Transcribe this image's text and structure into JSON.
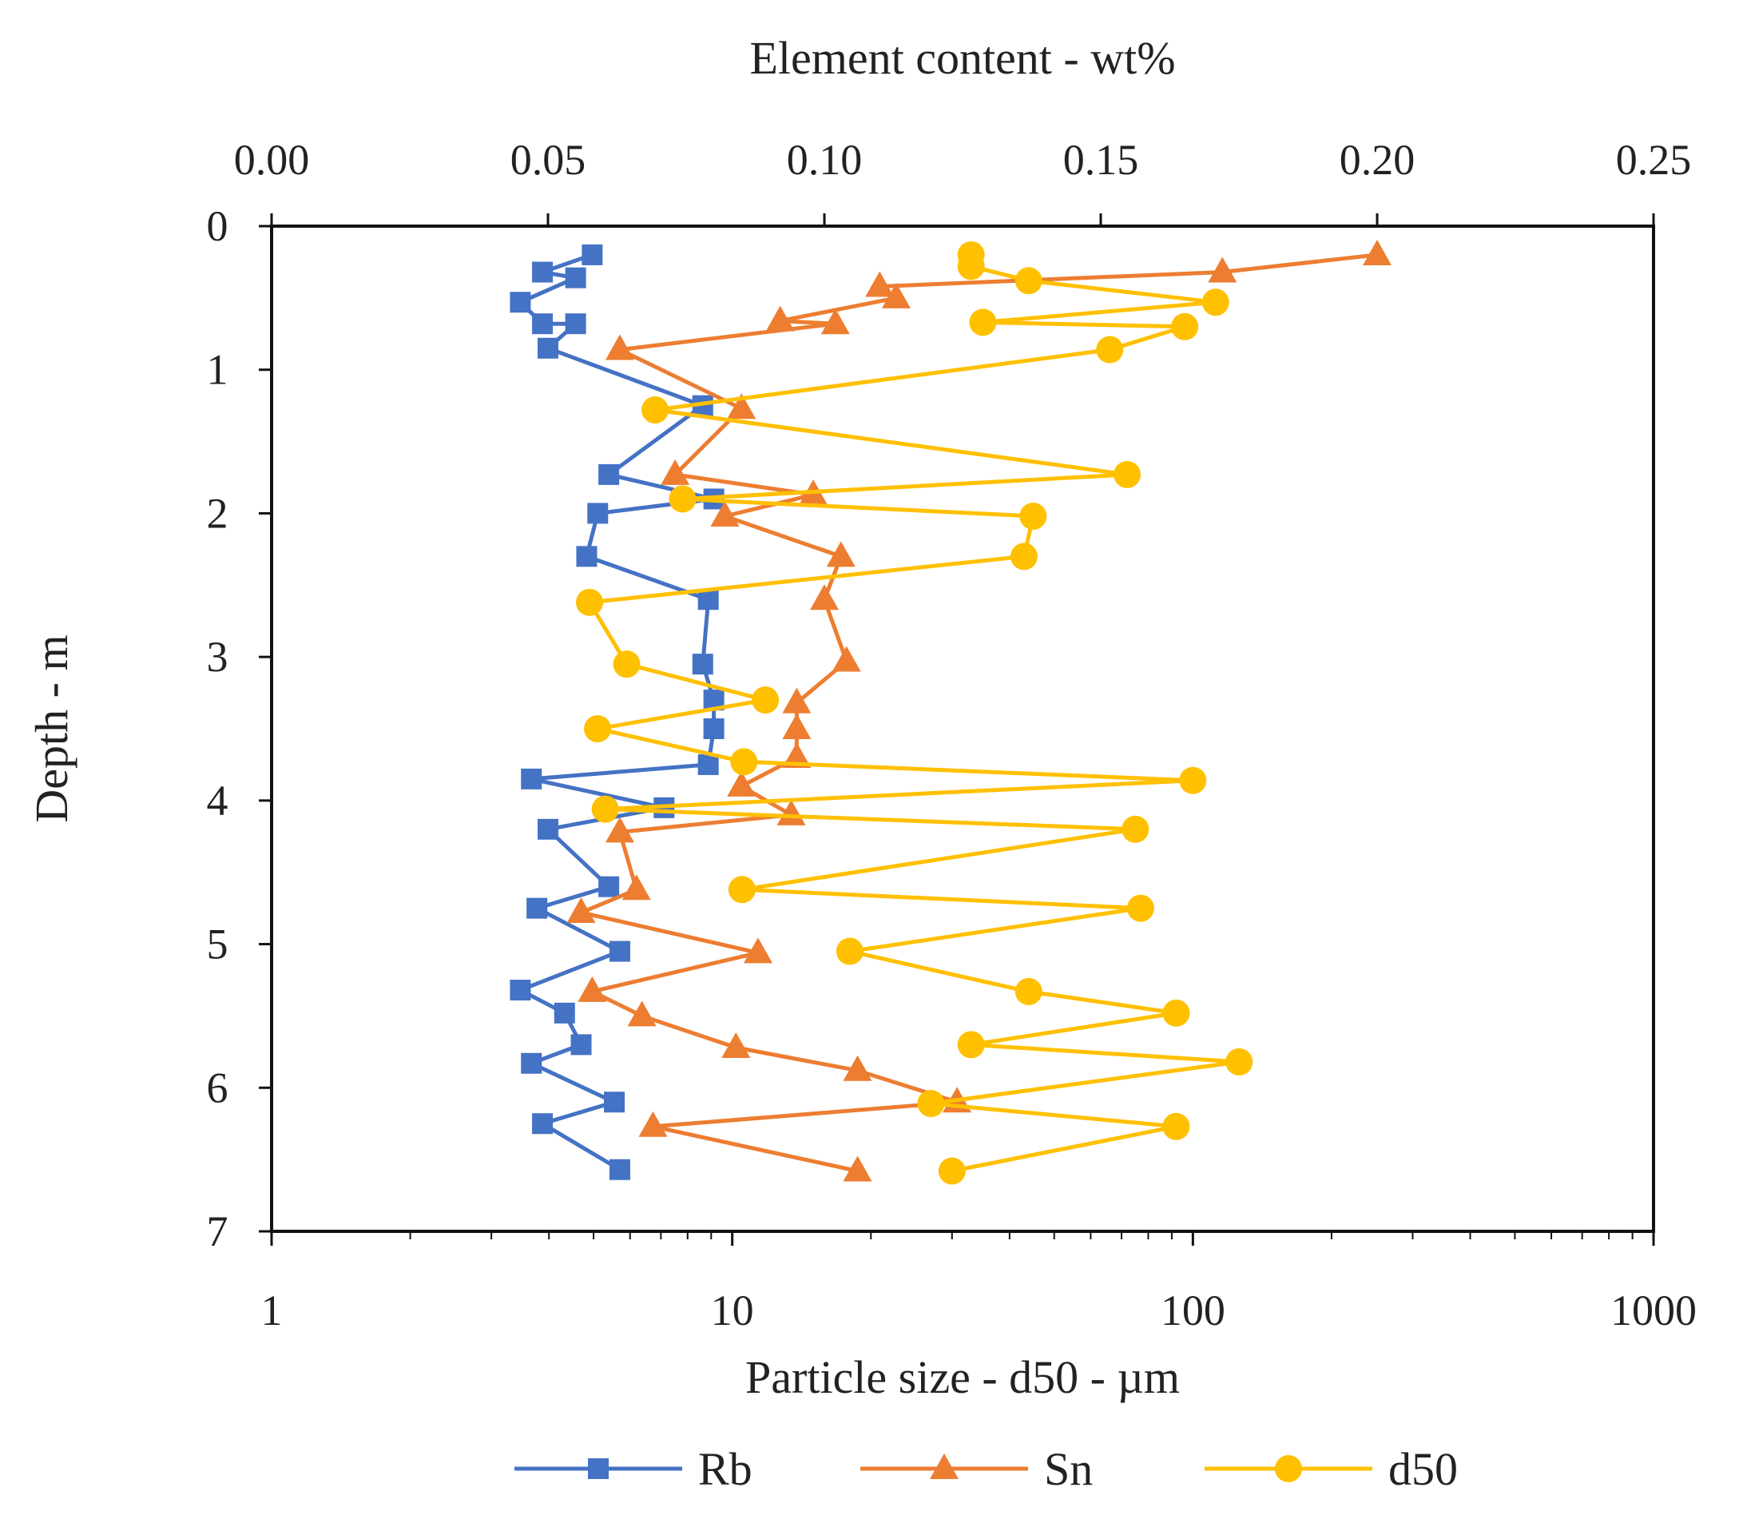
{
  "chart_data": {
    "type": "line",
    "title": "",
    "top_axis": {
      "label": "Element content - wt%",
      "range": [
        0,
        0.25
      ],
      "ticks": [
        "0.00",
        "0.05",
        "0.10",
        "0.15",
        "0.20",
        "0.25"
      ],
      "tick_values": [
        0,
        0.05,
        0.1,
        0.15,
        0.2,
        0.25
      ]
    },
    "bottom_axis": {
      "label": "Particle size - d50 - µm",
      "scale": "log",
      "range": [
        1,
        1000
      ],
      "ticks": [
        "1",
        "10",
        "100",
        "1000"
      ],
      "tick_values": [
        1,
        10,
        100,
        1000
      ]
    },
    "y_axis": {
      "label": "Depth - m",
      "range": [
        0,
        7
      ],
      "reversed": true,
      "ticks": [
        "0",
        "1",
        "2",
        "3",
        "4",
        "5",
        "6",
        "7"
      ],
      "tick_values": [
        0,
        1,
        2,
        3,
        4,
        5,
        6,
        7
      ]
    },
    "series": [
      {
        "name": "Rb",
        "axis": "top",
        "color": "#4472C4",
        "marker": "square",
        "points": [
          [
            0.058,
            0.2
          ],
          [
            0.049,
            0.32
          ],
          [
            0.055,
            0.36
          ],
          [
            0.045,
            0.53
          ],
          [
            0.049,
            0.68
          ],
          [
            0.055,
            0.68
          ],
          [
            0.05,
            0.85
          ],
          [
            0.078,
            1.25
          ],
          [
            0.061,
            1.73
          ],
          [
            0.08,
            1.9
          ],
          [
            0.059,
            2.0
          ],
          [
            0.057,
            2.3
          ],
          [
            0.079,
            2.6
          ],
          [
            0.078,
            3.05
          ],
          [
            0.08,
            3.3
          ],
          [
            0.08,
            3.5
          ],
          [
            0.079,
            3.75
          ],
          [
            0.047,
            3.85
          ],
          [
            0.071,
            4.05
          ],
          [
            0.05,
            4.2
          ],
          [
            0.061,
            4.6
          ],
          [
            0.048,
            4.75
          ],
          [
            0.063,
            5.05
          ],
          [
            0.045,
            5.32
          ],
          [
            0.053,
            5.48
          ],
          [
            0.056,
            5.7
          ],
          [
            0.047,
            5.83
          ],
          [
            0.062,
            6.1
          ],
          [
            0.049,
            6.25
          ],
          [
            0.063,
            6.57
          ]
        ]
      },
      {
        "name": "Sn",
        "axis": "top",
        "color": "#ED7D31",
        "marker": "triangle",
        "points": [
          [
            0.2,
            0.2
          ],
          [
            0.172,
            0.32
          ],
          [
            0.11,
            0.42
          ],
          [
            0.113,
            0.5
          ],
          [
            0.092,
            0.66
          ],
          [
            0.102,
            0.68
          ],
          [
            0.063,
            0.86
          ],
          [
            0.085,
            1.27
          ],
          [
            0.073,
            1.73
          ],
          [
            0.098,
            1.87
          ],
          [
            0.082,
            2.02
          ],
          [
            0.103,
            2.3
          ],
          [
            0.1,
            2.6
          ],
          [
            0.104,
            3.03
          ],
          [
            0.095,
            3.32
          ],
          [
            0.095,
            3.5
          ],
          [
            0.095,
            3.7
          ],
          [
            0.085,
            3.9
          ],
          [
            0.094,
            4.1
          ],
          [
            0.063,
            4.22
          ],
          [
            0.066,
            4.62
          ],
          [
            0.056,
            4.78
          ],
          [
            0.088,
            5.06
          ],
          [
            0.058,
            5.33
          ],
          [
            0.067,
            5.5
          ],
          [
            0.084,
            5.72
          ],
          [
            0.106,
            5.88
          ],
          [
            0.124,
            6.1
          ],
          [
            0.069,
            6.27
          ],
          [
            0.106,
            6.58
          ]
        ]
      },
      {
        "name": "d50",
        "axis": "bottom",
        "color": "#FFC000",
        "marker": "circle",
        "points": [
          [
            33,
            0.2
          ],
          [
            33,
            0.28
          ],
          [
            44,
            0.38
          ],
          [
            112,
            0.53
          ],
          [
            35,
            0.67
          ],
          [
            96,
            0.7
          ],
          [
            66,
            0.86
          ],
          [
            6.8,
            1.28
          ],
          [
            72,
            1.73
          ],
          [
            7.8,
            1.9
          ],
          [
            45,
            2.02
          ],
          [
            43,
            2.3
          ],
          [
            4.9,
            2.62
          ],
          [
            5.9,
            3.05
          ],
          [
            11.8,
            3.3
          ],
          [
            5.1,
            3.5
          ],
          [
            10.6,
            3.73
          ],
          [
            100,
            3.86
          ],
          [
            5.3,
            4.06
          ],
          [
            75,
            4.2
          ],
          [
            10.5,
            4.62
          ],
          [
            77,
            4.75
          ],
          [
            18,
            5.05
          ],
          [
            44,
            5.33
          ],
          [
            92,
            5.48
          ],
          [
            33,
            5.7
          ],
          [
            126,
            5.82
          ],
          [
            27,
            6.11
          ],
          [
            92,
            6.27
          ],
          [
            30,
            6.58
          ]
        ]
      }
    ],
    "legend": {
      "position": "bottom",
      "entries": [
        "Rb",
        "Sn",
        "d50"
      ]
    },
    "grid": false
  }
}
